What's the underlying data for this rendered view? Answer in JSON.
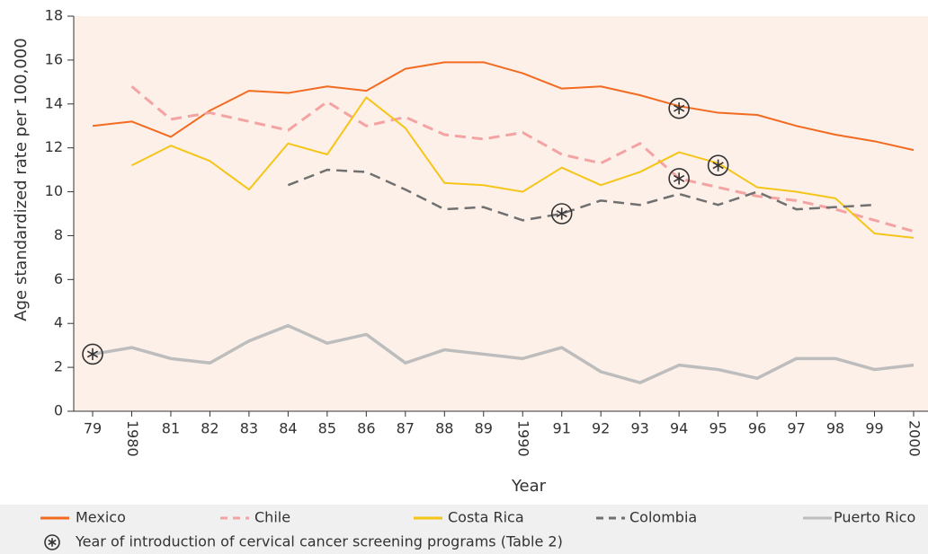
{
  "chart_data": {
    "type": "line",
    "y_label": "Age standardized rate per 100,000",
    "x_label": "Year",
    "categories": [
      "79",
      "1980",
      "81",
      "82",
      "83",
      "84",
      "85",
      "86",
      "87",
      "88",
      "89",
      "1990",
      "91",
      "92",
      "93",
      "94",
      "95",
      "96",
      "97",
      "98",
      "99",
      "2000"
    ],
    "ylim": [
      0,
      18
    ],
    "yticks": [
      0,
      2,
      4,
      6,
      8,
      10,
      12,
      14,
      16,
      18
    ],
    "series": [
      {
        "name": "Mexico",
        "color": "#f26b21",
        "dash": "solid",
        "values": [
          13.0,
          13.2,
          12.5,
          13.7,
          14.6,
          14.5,
          14.8,
          14.6,
          15.6,
          15.9,
          15.9,
          15.4,
          14.7,
          14.8,
          14.4,
          13.9,
          13.6,
          13.5,
          13.0,
          12.6,
          12.3,
          11.9
        ]
      },
      {
        "name": "Chile",
        "color": "#f4a3a3",
        "dash": "dashed",
        "values": [
          null,
          14.8,
          13.3,
          13.6,
          13.2,
          12.8,
          14.1,
          13.0,
          13.4,
          12.6,
          12.4,
          12.7,
          11.7,
          11.3,
          12.2,
          10.6,
          10.2,
          9.8,
          9.6,
          9.2,
          8.7,
          8.2
        ]
      },
      {
        "name": "Costa Rica",
        "color": "#f5c518",
        "dash": "solid",
        "values": [
          null,
          11.2,
          12.1,
          11.4,
          10.1,
          12.2,
          11.7,
          14.3,
          12.9,
          10.4,
          10.3,
          10.0,
          11.1,
          10.3,
          10.9,
          11.8,
          11.3,
          10.2,
          10.0,
          9.7,
          8.1,
          7.9
        ]
      },
      {
        "name": "Colombia",
        "color": "#707070",
        "dash": "dashed",
        "values": [
          null,
          null,
          null,
          null,
          null,
          10.3,
          11.0,
          10.9,
          10.1,
          9.2,
          9.3,
          8.7,
          9.0,
          9.6,
          9.4,
          9.9,
          9.4,
          10.0,
          9.2,
          9.3,
          9.4,
          null
        ]
      },
      {
        "name": "Puerto Rico",
        "color": "#bdbdbd",
        "dash": "solid",
        "values": [
          2.6,
          2.9,
          2.4,
          2.2,
          3.2,
          3.9,
          3.1,
          3.5,
          2.2,
          2.8,
          2.6,
          2.4,
          2.9,
          1.8,
          1.3,
          2.1,
          1.9,
          1.5,
          2.4,
          2.4,
          1.9,
          2.1
        ]
      }
    ],
    "markers": {
      "label": "Year of introduction of cervical cancer screening programs (Table 2)",
      "points": [
        {
          "x": "79",
          "value": 2.6
        },
        {
          "x": "91",
          "value": 9.0
        },
        {
          "x": "94",
          "value": 13.8
        },
        {
          "x": "94",
          "value": 10.6
        },
        {
          "x": "95",
          "value": 11.2
        }
      ]
    },
    "plot_background": "#fdf0e9"
  }
}
